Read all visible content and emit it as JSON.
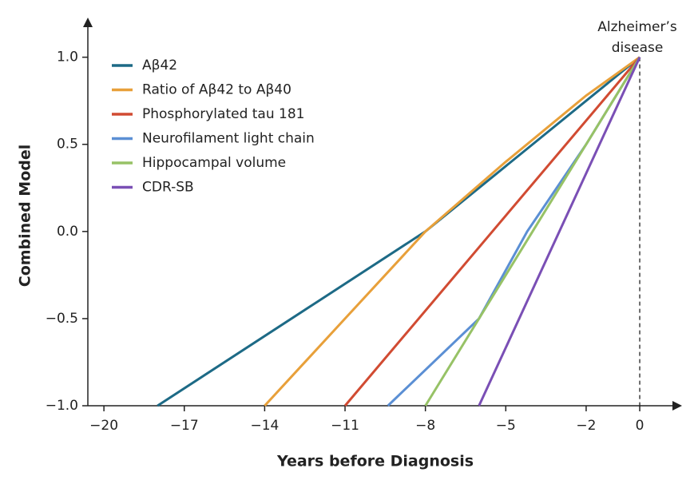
{
  "chart_data": {
    "type": "line",
    "x_label": "Years before Diagnosis",
    "y_label": "Combined Model",
    "annotation": [
      "Alzheimer’s",
      "disease"
    ],
    "xlim": [
      -20.6,
      1.4
    ],
    "ylim": [
      -1.0,
      1.2
    ],
    "xticks": [
      {
        "value": -20,
        "label": "−20"
      },
      {
        "value": -17,
        "label": "−17"
      },
      {
        "value": -14,
        "label": "−14"
      },
      {
        "value": -11,
        "label": "−11"
      },
      {
        "value": -8,
        "label": "−8"
      },
      {
        "value": -5,
        "label": "−5"
      },
      {
        "value": -2,
        "label": "−2"
      },
      0
    ],
    "yticks": [
      {
        "value": -1.0,
        "label": "−1.0"
      },
      {
        "value": -0.5,
        "label": "−0.5"
      },
      {
        "value": 0.0,
        "label": "0.0"
      },
      {
        "value": 0.5,
        "label": "0.5"
      },
      {
        "value": 1.0,
        "label": "1.0"
      }
    ],
    "event_x": 0,
    "legend": "upper left",
    "series": [
      {
        "name": "Aβ42",
        "color": "#1d6a86",
        "x": [
          -18,
          -12,
          -8,
          -4,
          0
        ],
        "values": [
          -1.0,
          -0.4,
          0.0,
          0.5,
          1.0
        ]
      },
      {
        "name": "Ratio of Aβ42 to Aβ40",
        "color": "#e8a03a",
        "x": [
          -14,
          -11,
          -8,
          -5,
          -2,
          0
        ],
        "values": [
          -1.0,
          -0.5,
          0.0,
          0.4,
          0.78,
          1.0
        ]
      },
      {
        "name": "Phosphorylated tau 181",
        "color": "#d14b32",
        "x": [
          -11,
          -5.5,
          0
        ],
        "values": [
          -1.0,
          0.0,
          1.0
        ]
      },
      {
        "name": "Neurofilament light chain",
        "color": "#5b8fd4",
        "x": [
          -9.4,
          -6,
          -4.2,
          -2,
          0
        ],
        "values": [
          -1.0,
          -0.5,
          0.0,
          0.5,
          1.0
        ]
      },
      {
        "name": "Hippocampal volume",
        "color": "#97c266",
        "x": [
          -8,
          -4,
          0
        ],
        "values": [
          -1.0,
          0.0,
          1.0
        ]
      },
      {
        "name": "CDR-SB",
        "color": "#7a4fb5",
        "x": [
          -6,
          0
        ],
        "values": [
          -1.0,
          1.0
        ]
      }
    ]
  }
}
